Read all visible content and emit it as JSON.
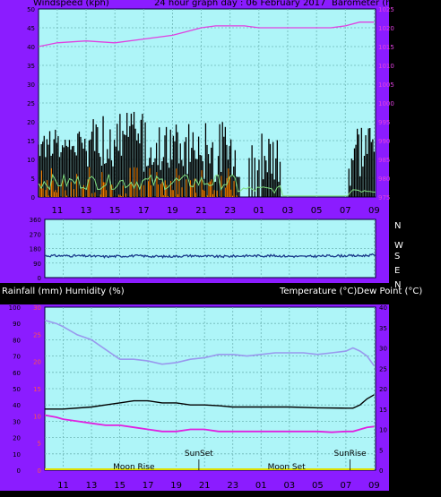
{
  "panel_color": "#8b1cff",
  "plot_bg": "#aef5f8",
  "header": {
    "left": "Windspeed (kph)",
    "center": "24 hour graph day : 06 February 2017",
    "right": "Barometer (hpa)"
  },
  "x_ticks": [
    "11",
    "13",
    "15",
    "17",
    "19",
    "21",
    "23",
    "01",
    "03",
    "05",
    "07",
    "09"
  ],
  "chart_data": [
    {
      "type": "line",
      "title": "24 hour graph day : 06 February 2017",
      "xlabel": "",
      "ylabel": "Windspeed (kph)",
      "y2label": "Barometer (hpa)",
      "ylim": [
        0,
        50
      ],
      "y_ticks": [
        0,
        5,
        10,
        15,
        20,
        25,
        30,
        35,
        40,
        45,
        50
      ],
      "y2lim": [
        975,
        1025
      ],
      "y2_ticks": [
        975,
        980,
        985,
        990,
        995,
        1000,
        1005,
        1010,
        1015,
        1020,
        1025
      ],
      "grid": true,
      "x_ticks": [
        "11",
        "13",
        "15",
        "17",
        "19",
        "21",
        "23",
        "01",
        "03",
        "05",
        "07",
        "09"
      ],
      "series": [
        {
          "name": "Barometer (hpa)",
          "color": "#e040e0",
          "axis": "right",
          "x": [
            9.7,
            11,
            13,
            15,
            17,
            19,
            20,
            21,
            22,
            23,
            24,
            25,
            27,
            29,
            30,
            31,
            32,
            33
          ],
          "values": [
            1015.0,
            1016.0,
            1016.5,
            1016.0,
            1017.0,
            1018.0,
            1019.0,
            1020.0,
            1020.5,
            1020.5,
            1020.5,
            1020.0,
            1020.0,
            1020.0,
            1020.0,
            1020.5,
            1021.5,
            1021.5
          ]
        },
        {
          "name": "wind gust",
          "color": "#000000",
          "axis": "left",
          "x": [],
          "values": []
        },
        {
          "name": "wind speed",
          "color": "#f07c00",
          "axis": "left",
          "x": [],
          "values": []
        },
        {
          "name": "wind avg",
          "color": "#80e080",
          "axis": "left",
          "x": [],
          "values": []
        }
      ]
    },
    {
      "type": "line",
      "ylabel": "",
      "ylim": [
        0,
        360
      ],
      "y_ticks": [
        0,
        90,
        180,
        270,
        360
      ],
      "y2_labels": [
        "N",
        "W",
        "S",
        "E",
        "N"
      ],
      "grid": true,
      "series": [
        {
          "name": "wind direction",
          "color": "#1a3a8a",
          "x": [
            9.7,
            12,
            14,
            16,
            18,
            20,
            22,
            24,
            26,
            28,
            30,
            32,
            33
          ],
          "values": [
            135,
            135,
            130,
            135,
            130,
            135,
            130,
            135,
            135,
            130,
            135,
            135,
            140
          ]
        }
      ]
    },
    {
      "type": "line",
      "ylabel": "Rainfall (mm)  Humidity (%)",
      "y2label": "Temperature (°C)Dew Point (°C)",
      "ylim": [
        0,
        100
      ],
      "y_ticks": [
        0,
        10,
        20,
        30,
        40,
        50,
        60,
        70,
        80,
        90,
        100
      ],
      "rain_ticks": [
        "0",
        "5",
        "10",
        "15",
        "20",
        "25",
        "30"
      ],
      "y2lim": [
        0,
        40
      ],
      "y2_ticks": [
        0,
        5,
        10,
        15,
        20,
        25,
        30,
        35,
        40
      ],
      "grid": true,
      "x_ticks": [
        "11",
        "13",
        "15",
        "17",
        "19",
        "21",
        "23",
        "01",
        "03",
        "05",
        "07",
        "09"
      ],
      "annotations": [
        {
          "text": "Moon Rise",
          "x": 16
        },
        {
          "text": "SunSet",
          "x": 20.6
        },
        {
          "text": "Moon Set",
          "x": 26.8
        },
        {
          "text": "SunRise",
          "x": 31.3
        }
      ],
      "series": [
        {
          "name": "Humidity (%)",
          "color": "#9999ee",
          "axis": "left",
          "x": [
            9.7,
            10.5,
            11,
            12,
            13,
            14,
            15,
            16,
            17,
            18,
            19,
            20,
            21,
            22,
            23,
            24,
            25,
            26,
            27,
            28,
            29,
            30,
            31,
            31.5,
            32,
            32.5,
            33
          ],
          "values": [
            92,
            90,
            88,
            83,
            80,
            74,
            68,
            68,
            67,
            65,
            66,
            68,
            69,
            71,
            71,
            70,
            71,
            72,
            72,
            72,
            71,
            72,
            73,
            75,
            73,
            70,
            64
          ]
        },
        {
          "name": "Temperature (°C)",
          "color": "#000000",
          "axis": "right",
          "x": [
            9.7,
            11,
            13,
            14,
            15,
            16,
            17,
            18,
            19,
            20,
            21,
            22,
            23,
            24,
            25,
            27,
            29,
            31,
            31.5,
            32,
            32.5,
            33
          ],
          "values": [
            15,
            15,
            15.5,
            16,
            16.5,
            17,
            17,
            16.5,
            16.5,
            16,
            16,
            15.8,
            15.5,
            15.5,
            15.5,
            15.5,
            15.3,
            15.2,
            15.2,
            16,
            17.5,
            18.5
          ]
        },
        {
          "name": "Dew Point (°C)",
          "color": "#e020e0",
          "axis": "right",
          "x": [
            9.7,
            10.5,
            11,
            12,
            13,
            14,
            15,
            16,
            17,
            18,
            19,
            20,
            21,
            22,
            23,
            24,
            25,
            26,
            27,
            28,
            29,
            30,
            31,
            31.5,
            32,
            32.5,
            33
          ],
          "values": [
            13.5,
            13,
            12.5,
            12,
            11.5,
            11,
            11,
            10.5,
            10,
            9.5,
            9.5,
            10,
            10,
            9.5,
            9.5,
            9.5,
            9.5,
            9.5,
            9.5,
            9.5,
            9.5,
            9.3,
            9.5,
            9.5,
            10,
            10.5,
            10.7
          ]
        },
        {
          "name": "Rainfall (mm)",
          "color": "#e0e000",
          "axis": "left",
          "x": [
            9.7,
            33
          ],
          "values": [
            0,
            0
          ]
        }
      ]
    }
  ]
}
